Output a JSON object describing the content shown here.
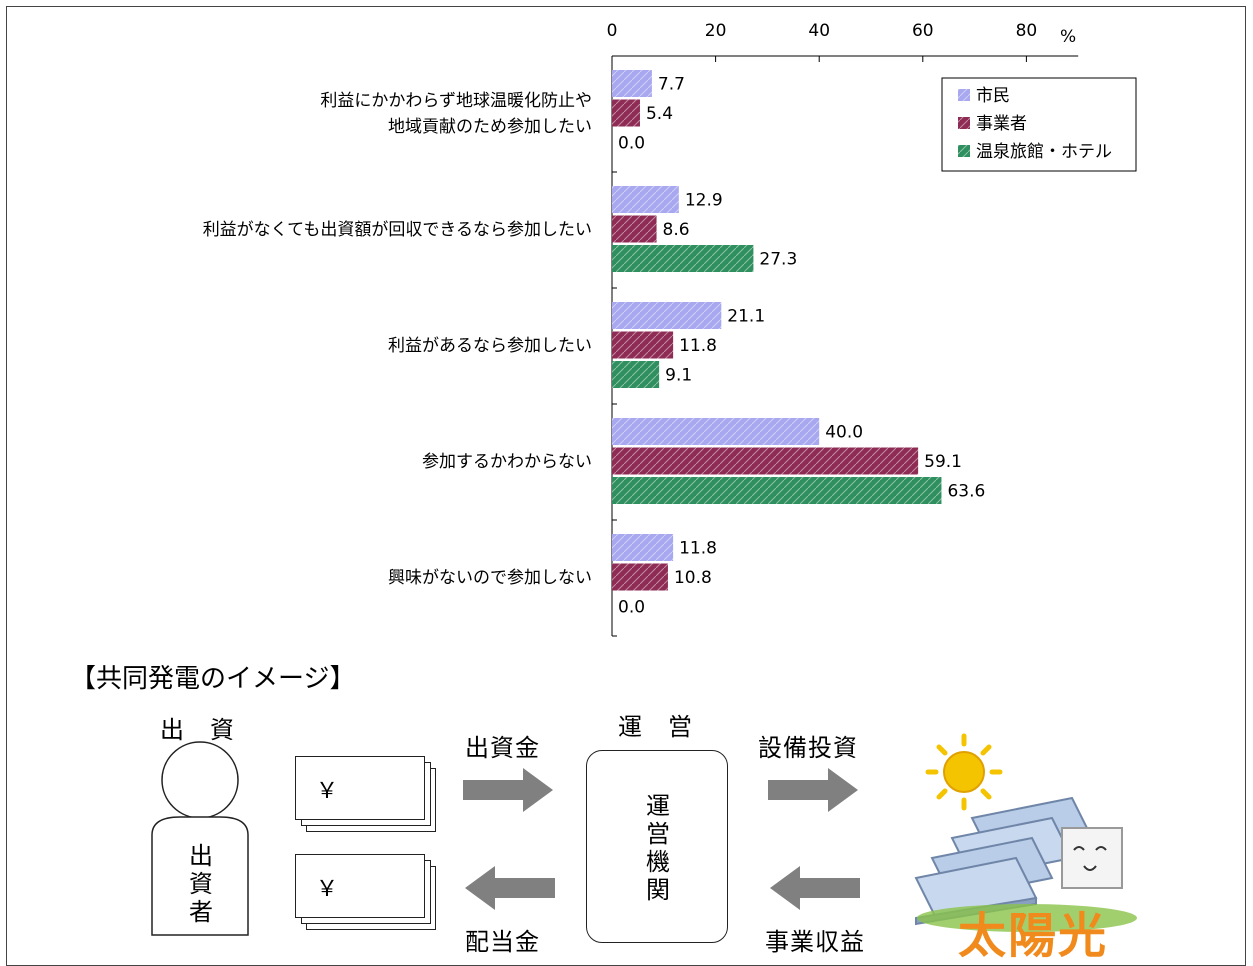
{
  "chart_data": {
    "type": "bar",
    "orientation": "horizontal",
    "unit": "%",
    "xlim": [
      0,
      90
    ],
    "x_ticks": [
      0,
      20,
      40,
      60,
      80
    ],
    "categories": [
      "利益にかかわらず地球温暖化防止や\n地域貢献のため参加したい",
      "利益がなくても出資額が回収できるなら参加したい",
      "利益があるなら参加したい",
      "参加するかわからない",
      "興味がないので参加しない"
    ],
    "series": [
      {
        "name": "市民",
        "values": [
          7.7,
          12.9,
          21.1,
          40.0,
          11.8
        ],
        "color": "#a8a8f0"
      },
      {
        "name": "事業者",
        "values": [
          5.4,
          8.6,
          11.8,
          59.1,
          10.8
        ],
        "color": "#8e2c55"
      },
      {
        "name": "温泉旅館・ホテル",
        "values": [
          0.0,
          27.3,
          9.1,
          63.6,
          0.0
        ],
        "color": "#2f8f5e"
      }
    ],
    "legend_position": "top-right",
    "grid": false
  },
  "diagram": {
    "section_title": "【共同発電のイメージ】",
    "investor_heading": "出　資",
    "investor_label": "出資者",
    "operation_heading": "運　営",
    "operator_label": "運営機関",
    "flow_investment": "出資金",
    "flow_dividend": "配当金",
    "flow_equipment": "設備投資",
    "flow_revenue": "事業収益",
    "currency_symbol": "￥",
    "solar_label": "太陽光"
  }
}
